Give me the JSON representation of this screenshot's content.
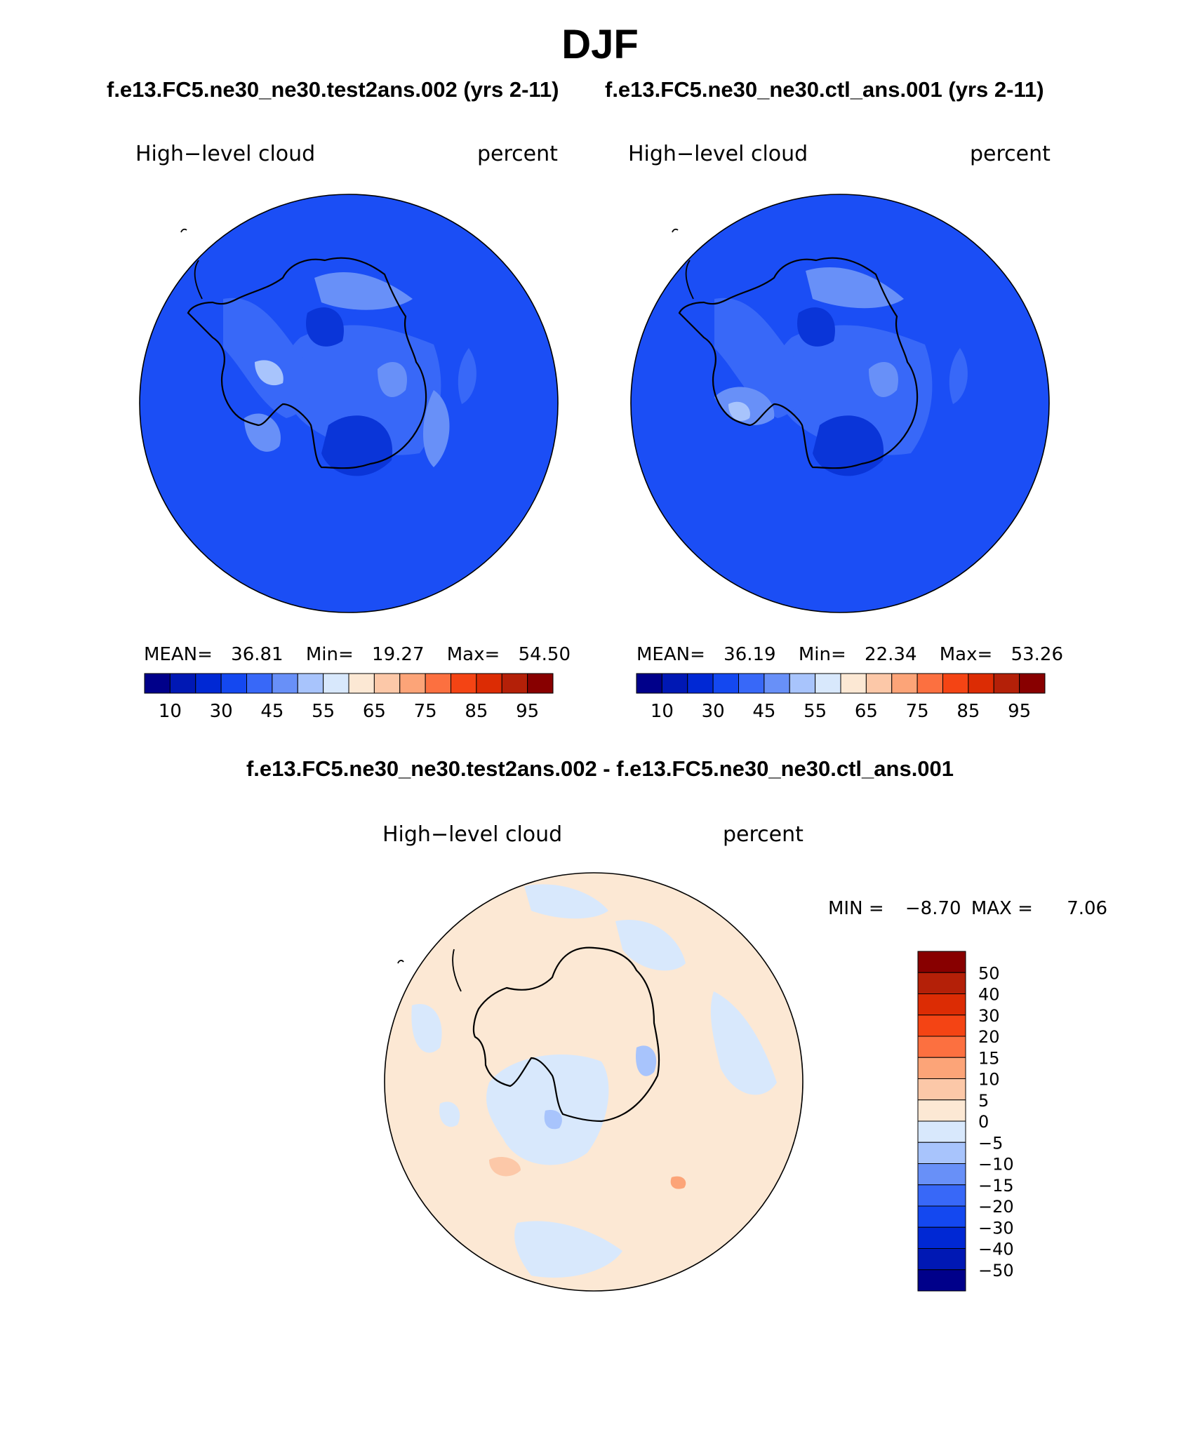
{
  "season": "DJF",
  "test_case": {
    "title": "f.e13.FC5.ne30_ne30.test2ans.002 (yrs 2-11)",
    "variable": "High−level cloud",
    "units": "percent",
    "stats": {
      "mean_label": "MEAN=",
      "mean": "36.81",
      "min_label": "Min=",
      "min": "19.27",
      "max_label": "Max=",
      "max": "54.50"
    }
  },
  "control_case": {
    "title": "f.e13.FC5.ne30_ne30.ctl_ans.001 (yrs 2-11)",
    "variable": "High−level cloud",
    "units": "percent",
    "stats": {
      "mean_label": "MEAN=",
      "mean": "36.19",
      "min_label": "Min=",
      "min": "22.34",
      "max_label": "Max=",
      "max": "53.26"
    }
  },
  "difference": {
    "title": "f.e13.FC5.ne30_ne30.test2ans.002 - f.e13.FC5.ne30_ne30.ctl_ans.001",
    "variable": "High−level cloud",
    "units": "percent",
    "min_label": "MIN =",
    "min": "−8.70",
    "max_label": "MAX =",
    "max": "7.06"
  },
  "abs_colorbar": {
    "colors": [
      "#00008a",
      "#0018b4",
      "#0028d4",
      "#1448f0",
      "#3868f8",
      "#6890f8",
      "#a8c4fc",
      "#d8e8fc",
      "#fce8d4",
      "#fcc8a8",
      "#fca478",
      "#fc7040",
      "#f44414",
      "#dc2c04",
      "#b42008",
      "#880000"
    ],
    "labels": [
      "10",
      "30",
      "45",
      "55",
      "65",
      "75",
      "85",
      "95"
    ]
  },
  "diff_colorbar": {
    "colors": [
      "#880000",
      "#b42008",
      "#dc2c04",
      "#f44414",
      "#fc7040",
      "#fca478",
      "#fcc8a8",
      "#fce8d4",
      "#d8e8fc",
      "#a8c4fc",
      "#6890f8",
      "#3868f8",
      "#1448f0",
      "#0028d4",
      "#0018b4",
      "#00008a"
    ],
    "labels": [
      "50",
      "40",
      "30",
      "20",
      "15",
      "10",
      "5",
      "0",
      "−5",
      "−10",
      "−15",
      "−20",
      "−30",
      "−40",
      "−50"
    ]
  }
}
